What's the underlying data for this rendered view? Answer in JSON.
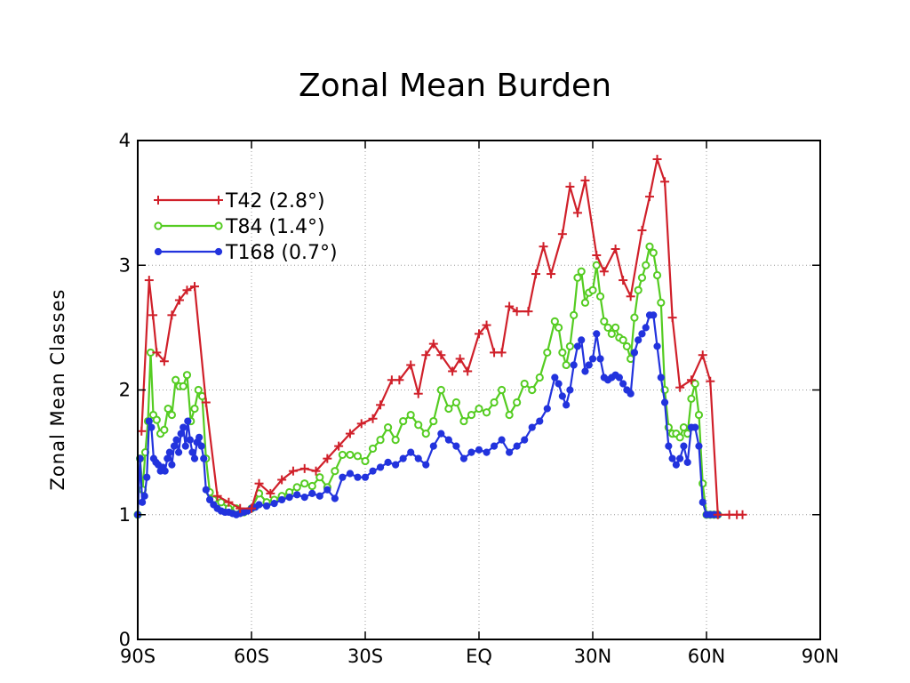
{
  "chart_data": {
    "type": "line",
    "title": "Zonal Mean Burden",
    "xlabel": "",
    "ylabel": "Zonal Mean Classes",
    "xlim": [
      -90,
      90
    ],
    "ylim": [
      0,
      4
    ],
    "x_ticks": [
      -90,
      -60,
      -30,
      0,
      30,
      60,
      90
    ],
    "x_tick_labels": [
      "90S",
      "60S",
      "30S",
      "EQ",
      "30N",
      "60N",
      "90N"
    ],
    "y_ticks": [
      0,
      1,
      2,
      3,
      4
    ],
    "y_tick_labels": [
      "0",
      "1",
      "2",
      "3",
      "4"
    ],
    "grid": true,
    "legend": "top-left",
    "series": [
      {
        "name": "T42 (2.8°)",
        "color": "#d0202a",
        "marker": "plus",
        "points": [
          [
            -89,
            1.67
          ],
          [
            -87,
            2.88
          ],
          [
            -86,
            2.6
          ],
          [
            -85,
            2.3
          ],
          [
            -83,
            2.23
          ],
          [
            -81,
            2.6
          ],
          [
            -79,
            2.72
          ],
          [
            -77,
            2.8
          ],
          [
            -75,
            2.83
          ],
          [
            -72,
            1.9
          ],
          [
            -69,
            1.15
          ],
          [
            -66,
            1.1
          ],
          [
            -63,
            1.05
          ],
          [
            -60,
            1.05
          ],
          [
            -58,
            1.25
          ],
          [
            -55,
            1.17
          ],
          [
            -52,
            1.28
          ],
          [
            -49,
            1.35
          ],
          [
            -46,
            1.37
          ],
          [
            -43,
            1.35
          ],
          [
            -40,
            1.45
          ],
          [
            -37,
            1.55
          ],
          [
            -34,
            1.65
          ],
          [
            -31,
            1.73
          ],
          [
            -28,
            1.77
          ],
          [
            -26,
            1.88
          ],
          [
            -23,
            2.08
          ],
          [
            -21,
            2.08
          ],
          [
            -18,
            2.2
          ],
          [
            -16,
            1.97
          ],
          [
            -14,
            2.28
          ],
          [
            -12,
            2.37
          ],
          [
            -10,
            2.28
          ],
          [
            -7,
            2.15
          ],
          [
            -5,
            2.25
          ],
          [
            -3,
            2.15
          ],
          [
            0,
            2.45
          ],
          [
            2,
            2.52
          ],
          [
            4,
            2.3
          ],
          [
            6,
            2.3
          ],
          [
            8,
            2.67
          ],
          [
            10,
            2.63
          ],
          [
            13,
            2.63
          ],
          [
            15,
            2.93
          ],
          [
            17,
            3.15
          ],
          [
            19,
            2.93
          ],
          [
            22,
            3.25
          ],
          [
            24,
            3.63
          ],
          [
            26,
            3.42
          ],
          [
            28,
            3.68
          ],
          [
            31,
            3.08
          ],
          [
            33,
            2.95
          ],
          [
            36,
            3.13
          ],
          [
            38,
            2.88
          ],
          [
            40,
            2.75
          ],
          [
            43,
            3.28
          ],
          [
            45,
            3.55
          ],
          [
            47,
            3.85
          ],
          [
            49,
            3.67
          ],
          [
            51,
            2.58
          ],
          [
            53,
            2.02
          ],
          [
            56,
            2.08
          ],
          [
            59,
            2.28
          ],
          [
            61,
            2.07
          ],
          [
            63,
            1.0
          ],
          [
            66,
            1.0
          ],
          [
            68,
            1.0
          ],
          [
            69.5,
            1.0
          ]
        ]
      },
      {
        "name": "T84 (1.4°)",
        "color": "#55cc22",
        "marker": "circle",
        "points": [
          [
            -90,
            1.0
          ],
          [
            -89.4,
            1.45
          ],
          [
            -88.7,
            1.2
          ],
          [
            -88,
            1.5
          ],
          [
            -87.3,
            1.75
          ],
          [
            -86.6,
            2.3
          ],
          [
            -85.9,
            1.8
          ],
          [
            -85,
            1.76
          ],
          [
            -84,
            1.65
          ],
          [
            -83,
            1.68
          ],
          [
            -82,
            1.85
          ],
          [
            -81,
            1.8
          ],
          [
            -80,
            2.08
          ],
          [
            -79,
            2.03
          ],
          [
            -78,
            2.03
          ],
          [
            -77,
            2.12
          ],
          [
            -76,
            1.75
          ],
          [
            -75,
            1.85
          ],
          [
            -74,
            2.0
          ],
          [
            -73,
            1.95
          ],
          [
            -72,
            1.45
          ],
          [
            -71,
            1.18
          ],
          [
            -70,
            1.12
          ],
          [
            -68,
            1.1
          ],
          [
            -66,
            1.05
          ],
          [
            -64,
            1.05
          ],
          [
            -62,
            1.02
          ],
          [
            -60,
            1.05
          ],
          [
            -58,
            1.17
          ],
          [
            -56,
            1.1
          ],
          [
            -54,
            1.12
          ],
          [
            -52,
            1.15
          ],
          [
            -50,
            1.18
          ],
          [
            -48,
            1.22
          ],
          [
            -46,
            1.25
          ],
          [
            -44,
            1.23
          ],
          [
            -42,
            1.3
          ],
          [
            -40,
            1.22
          ],
          [
            -38,
            1.35
          ],
          [
            -36,
            1.48
          ],
          [
            -34,
            1.48
          ],
          [
            -32,
            1.47
          ],
          [
            -30,
            1.43
          ],
          [
            -28,
            1.53
          ],
          [
            -26,
            1.6
          ],
          [
            -24,
            1.7
          ],
          [
            -22,
            1.6
          ],
          [
            -20,
            1.75
          ],
          [
            -18,
            1.8
          ],
          [
            -16,
            1.72
          ],
          [
            -14,
            1.65
          ],
          [
            -12,
            1.75
          ],
          [
            -10,
            2.0
          ],
          [
            -8,
            1.85
          ],
          [
            -6,
            1.9
          ],
          [
            -4,
            1.75
          ],
          [
            -2,
            1.8
          ],
          [
            0,
            1.85
          ],
          [
            2,
            1.82
          ],
          [
            4,
            1.9
          ],
          [
            6,
            2.0
          ],
          [
            8,
            1.8
          ],
          [
            10,
            1.9
          ],
          [
            12,
            2.05
          ],
          [
            14,
            2.0
          ],
          [
            16,
            2.1
          ],
          [
            18,
            2.3
          ],
          [
            20,
            2.55
          ],
          [
            21,
            2.5
          ],
          [
            22,
            2.3
          ],
          [
            23,
            2.2
          ],
          [
            24,
            2.35
          ],
          [
            25,
            2.6
          ],
          [
            26,
            2.9
          ],
          [
            27,
            2.95
          ],
          [
            28,
            2.7
          ],
          [
            29,
            2.78
          ],
          [
            30,
            2.8
          ],
          [
            31,
            3.0
          ],
          [
            32,
            2.75
          ],
          [
            33,
            2.55
          ],
          [
            34,
            2.5
          ],
          [
            35,
            2.45
          ],
          [
            36,
            2.5
          ],
          [
            37,
            2.42
          ],
          [
            38,
            2.4
          ],
          [
            39,
            2.35
          ],
          [
            40,
            2.25
          ],
          [
            41,
            2.58
          ],
          [
            42,
            2.8
          ],
          [
            43,
            2.9
          ],
          [
            44,
            3.0
          ],
          [
            45,
            3.15
          ],
          [
            46,
            3.1
          ],
          [
            47,
            2.92
          ],
          [
            48,
            2.7
          ],
          [
            49,
            2.0
          ],
          [
            50,
            1.7
          ],
          [
            51,
            1.65
          ],
          [
            52,
            1.65
          ],
          [
            53,
            1.62
          ],
          [
            54,
            1.7
          ],
          [
            55,
            1.65
          ],
          [
            56,
            1.93
          ],
          [
            57,
            2.05
          ],
          [
            58,
            1.8
          ],
          [
            59,
            1.25
          ],
          [
            60,
            1.0
          ],
          [
            61,
            1.0
          ],
          [
            62,
            1.0
          ],
          [
            63,
            1.0
          ]
        ]
      },
      {
        "name": "T168 (0.7°)",
        "color": "#2233dd",
        "marker": "dot",
        "points": [
          [
            -90,
            1.0
          ],
          [
            -89.4,
            1.45
          ],
          [
            -88.8,
            1.1
          ],
          [
            -88.2,
            1.15
          ],
          [
            -87.6,
            1.3
          ],
          [
            -87,
            1.75
          ],
          [
            -86.4,
            1.7
          ],
          [
            -85.8,
            1.45
          ],
          [
            -85.2,
            1.42
          ],
          [
            -84.6,
            1.4
          ],
          [
            -84,
            1.35
          ],
          [
            -83.4,
            1.38
          ],
          [
            -82.8,
            1.35
          ],
          [
            -82.2,
            1.45
          ],
          [
            -81.6,
            1.5
          ],
          [
            -81,
            1.4
          ],
          [
            -80.4,
            1.55
          ],
          [
            -79.8,
            1.6
          ],
          [
            -79.2,
            1.5
          ],
          [
            -78.6,
            1.65
          ],
          [
            -78,
            1.7
          ],
          [
            -77.4,
            1.55
          ],
          [
            -76.8,
            1.75
          ],
          [
            -76.2,
            1.6
          ],
          [
            -75.6,
            1.5
          ],
          [
            -75,
            1.45
          ],
          [
            -74.4,
            1.58
          ],
          [
            -73.8,
            1.62
          ],
          [
            -73.2,
            1.55
          ],
          [
            -72.6,
            1.45
          ],
          [
            -72,
            1.2
          ],
          [
            -71,
            1.12
          ],
          [
            -70,
            1.08
          ],
          [
            -69,
            1.05
          ],
          [
            -68,
            1.03
          ],
          [
            -67,
            1.02
          ],
          [
            -66,
            1.02
          ],
          [
            -65,
            1.01
          ],
          [
            -64,
            1.0
          ],
          [
            -63,
            1.01
          ],
          [
            -62,
            1.02
          ],
          [
            -61,
            1.03
          ],
          [
            -60,
            1.05
          ],
          [
            -59,
            1.06
          ],
          [
            -58,
            1.08
          ],
          [
            -56,
            1.07
          ],
          [
            -54,
            1.09
          ],
          [
            -52,
            1.12
          ],
          [
            -50,
            1.14
          ],
          [
            -48,
            1.16
          ],
          [
            -46,
            1.14
          ],
          [
            -44,
            1.17
          ],
          [
            -42,
            1.15
          ],
          [
            -40,
            1.2
          ],
          [
            -38,
            1.13
          ],
          [
            -36,
            1.3
          ],
          [
            -34,
            1.33
          ],
          [
            -32,
            1.3
          ],
          [
            -30,
            1.3
          ],
          [
            -28,
            1.35
          ],
          [
            -26,
            1.38
          ],
          [
            -24,
            1.42
          ],
          [
            -22,
            1.4
          ],
          [
            -20,
            1.45
          ],
          [
            -18,
            1.5
          ],
          [
            -16,
            1.45
          ],
          [
            -14,
            1.4
          ],
          [
            -12,
            1.55
          ],
          [
            -10,
            1.65
          ],
          [
            -8,
            1.6
          ],
          [
            -6,
            1.55
          ],
          [
            -4,
            1.45
          ],
          [
            -2,
            1.5
          ],
          [
            0,
            1.52
          ],
          [
            2,
            1.5
          ],
          [
            4,
            1.55
          ],
          [
            6,
            1.6
          ],
          [
            8,
            1.5
          ],
          [
            10,
            1.55
          ],
          [
            12,
            1.6
          ],
          [
            14,
            1.7
          ],
          [
            16,
            1.75
          ],
          [
            18,
            1.85
          ],
          [
            20,
            2.1
          ],
          [
            21,
            2.05
          ],
          [
            22,
            1.95
          ],
          [
            23,
            1.88
          ],
          [
            24,
            2.0
          ],
          [
            25,
            2.2
          ],
          [
            26,
            2.35
          ],
          [
            27,
            2.4
          ],
          [
            28,
            2.15
          ],
          [
            29,
            2.2
          ],
          [
            30,
            2.25
          ],
          [
            31,
            2.45
          ],
          [
            32,
            2.25
          ],
          [
            33,
            2.1
          ],
          [
            34,
            2.08
          ],
          [
            35,
            2.1
          ],
          [
            36,
            2.12
          ],
          [
            37,
            2.1
          ],
          [
            38,
            2.05
          ],
          [
            39,
            2.0
          ],
          [
            40,
            1.97
          ],
          [
            41,
            2.3
          ],
          [
            42,
            2.4
          ],
          [
            43,
            2.45
          ],
          [
            44,
            2.5
          ],
          [
            45,
            2.6
          ],
          [
            46,
            2.6
          ],
          [
            47,
            2.35
          ],
          [
            48,
            2.1
          ],
          [
            49,
            1.9
          ],
          [
            50,
            1.55
          ],
          [
            51,
            1.45
          ],
          [
            52,
            1.4
          ],
          [
            53,
            1.45
          ],
          [
            54,
            1.55
          ],
          [
            55,
            1.42
          ],
          [
            56,
            1.7
          ],
          [
            57,
            1.7
          ],
          [
            58,
            1.55
          ],
          [
            59,
            1.1
          ],
          [
            60,
            1.0
          ],
          [
            61,
            1.0
          ],
          [
            62,
            1.0
          ],
          [
            63,
            1.0
          ]
        ]
      }
    ]
  }
}
